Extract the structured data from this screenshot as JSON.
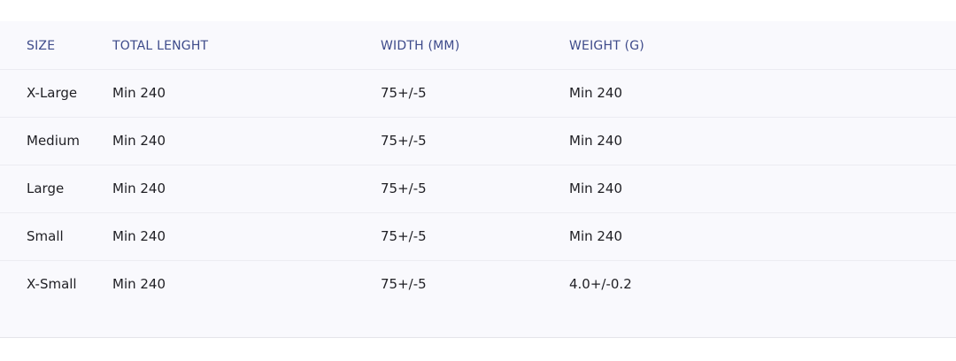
{
  "table": {
    "headers": [
      "SIZE",
      "TOTAL LENGHT",
      "WIDTH (MM)",
      "WEIGHT (G)"
    ],
    "rows": [
      [
        "X-Large",
        "Min 240",
        "75+/-5",
        "Min 240"
      ],
      [
        "Medium",
        "Min 240",
        "75+/-5",
        "Min 240"
      ],
      [
        "Large",
        "Min 240",
        "75+/-5",
        "Min 240"
      ],
      [
        "Small",
        "Min 240",
        "75+/-5",
        "Min 240"
      ],
      [
        "X-Small",
        "Min 240",
        "75+/-5",
        "4.0+/-0.2"
      ]
    ]
  },
  "colors": {
    "header_text": "#3d4a8a",
    "body_text": "#1f1f24",
    "panel_background": "#f9f9fd"
  }
}
